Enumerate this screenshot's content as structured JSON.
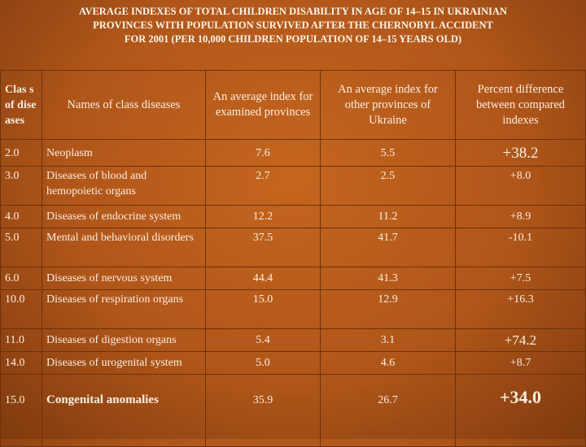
{
  "title": [
    "AVERAGE INDEXES OF TOTAL CHILDREN DISABILITY IN AGE OF 14–15 IN UKRAINIAN",
    "PROVINCES WITH POPULATION SURVIVED AFTER THE CHERNOBYL ACCIDENT",
    "FOR 2001 (PER 10,000 CHILDREN POPULATION OF 14–15 YEARS OLD)"
  ],
  "table": {
    "header": [
      "Clas s of dise ases",
      "Names of class diseases",
      "An average index for examined provinces",
      "An average index for other provinces of Ukraine",
      "Percent difference between compared indexes"
    ],
    "rows": [
      [
        "2.0",
        "Neoplasm",
        "7.6",
        "5.5",
        "+38.2"
      ],
      [
        "3.0",
        "Diseases of blood and hemopoietic organs",
        "2.7",
        "2.5",
        "+8.0"
      ],
      [
        "4.0",
        "Diseases of endocrine system",
        "12.2",
        "11.2",
        "+8.9"
      ],
      [
        "5.0",
        "Mental and behavioral disorders",
        "37.5",
        "41.7",
        "-10.1"
      ],
      [
        "6.0",
        "Diseases of nervous system",
        "44.4",
        "41.3",
        "+7.5"
      ],
      [
        "10.0",
        "Diseases of respiration organs",
        "15.0",
        "12.9",
        "+16.3"
      ],
      [
        "11.0",
        "Diseases of digestion organs",
        "5.4",
        "3.1",
        "+74.2"
      ],
      [
        "14.0",
        "Diseases of urogenital system",
        "5.0",
        "4.6",
        "+8.7"
      ],
      [
        "15.0",
        "Congenital anomalies",
        "35.9",
        "26.7",
        "+34.0"
      ]
    ]
  }
}
